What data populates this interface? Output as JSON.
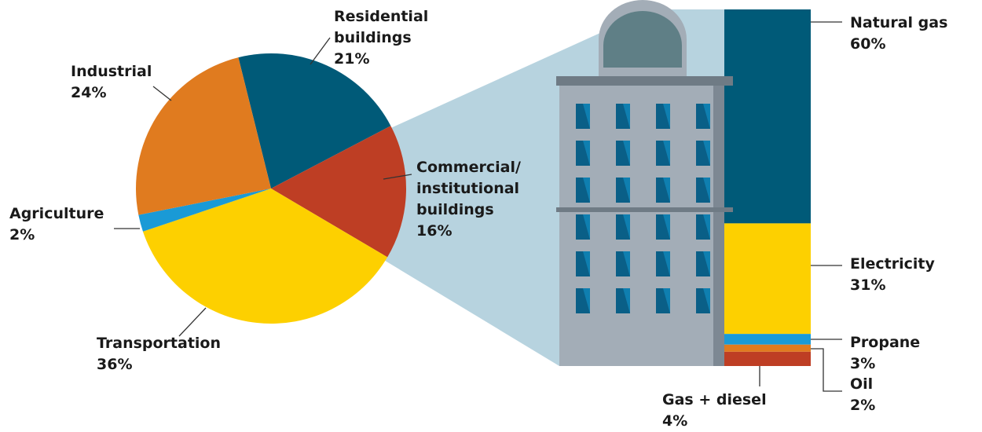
{
  "chart_data": [
    {
      "type": "pie",
      "categories": [
        "Residential buildings",
        "Commercial/ institutional buildings",
        "Transportation",
        "Agriculture",
        "Industrial"
      ],
      "values": [
        21,
        16,
        36,
        2,
        24
      ],
      "value_labels": [
        "21%",
        "16%",
        "36%",
        "2%",
        "24%"
      ],
      "colors": [
        "#005a78",
        "#be3e24",
        "#fdd000",
        "#1a9ad6",
        "#e07b1f"
      ]
    },
    {
      "type": "stacked-bar",
      "categories": [
        "Natural gas",
        "Electricity",
        "Propane",
        "Oil",
        "Gas + diesel"
      ],
      "values": [
        60,
        31,
        3,
        2,
        4
      ],
      "value_labels": [
        "60%",
        "31%",
        "3%",
        "2%",
        "4%"
      ],
      "colors": [
        "#005a78",
        "#fdd000",
        "#1a9ad6",
        "#e07b1f",
        "#be3e24"
      ]
    }
  ]
}
